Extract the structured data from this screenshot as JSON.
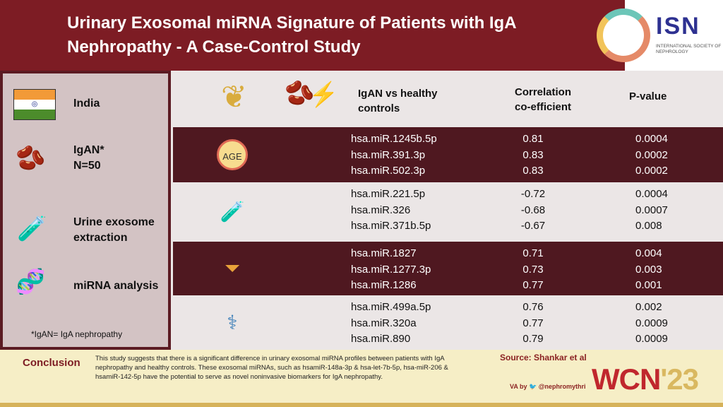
{
  "header": {
    "title": "Urinary Exosomal miRNA Signature of Patients with IgA Nephropathy - A Case-Control Study",
    "logo": {
      "name": "ISN",
      "subtitle": "INTERNATIONAL SOCIETY OF NEPHROLOGY"
    }
  },
  "left": {
    "country": "India",
    "cohort_line1": "IgAN*",
    "cohort_line2": "N=50",
    "step1_line1": "Urine exosome",
    "step1_line2": "extraction",
    "step2": "miRNA analysis",
    "footnote": "*IgAN= IgA nephropathy"
  },
  "table": {
    "col1_line1": "IgAN vs healthy",
    "col1_line2": "controls",
    "col2_line1": "Correlation",
    "col2_line2": "co-efficient",
    "col3": "P-value",
    "groups": [
      {
        "icon": "age-icon",
        "rows": [
          [
            "hsa.miR.1245b.5p",
            "0.81",
            "0.0004"
          ],
          [
            "hsa.miR.391.3p",
            "0.83",
            "0.0002"
          ],
          [
            "hsa.miR.502.3p",
            "0.83",
            "0.0002"
          ]
        ]
      },
      {
        "icon": "urine-test-icon",
        "rows": [
          [
            "hsa.miR.221.5p",
            "-0.72",
            "0.0004"
          ],
          [
            "hsa.miR.326",
            "-0.68",
            "0.0007"
          ],
          [
            "hsa.miR.371b.5p",
            "-0.67",
            "0.008"
          ]
        ]
      },
      {
        "icon": "filter-icon",
        "rows": [
          [
            "hsa.miR.1827",
            "0.71",
            "0.004"
          ],
          [
            "hsa.miR.1277.3p",
            "0.73",
            "0.003"
          ],
          [
            "hsa.miR.1286",
            "0.77",
            "0.001"
          ]
        ]
      },
      {
        "icon": "dialysis-icon",
        "rows": [
          [
            "hsa.miR.499a.5p",
            "0.76",
            "0.002"
          ],
          [
            "hsa.miR.320a",
            "0.77",
            "0.0009"
          ],
          [
            "hsa.miR.890",
            "0.79",
            "0.0009"
          ]
        ]
      }
    ]
  },
  "footer": {
    "conclusion_label": "Conclusion",
    "conclusion_text": "This study suggests that there is a significant difference in urinary exosomal miRNA profiles between patients with IgA nephropathy and healthy controls. These exosomal miRNAs, such as hsamiR-148a-3p & hsa-let-7b-5p, hsa-miR-206 & hsamiR-142-5p have the potential to serve as novel noninvasive biomarkers for IgA nephropathy.",
    "source": "Source: Shankar et al",
    "va_by": "VA by",
    "handle": "@nephromythri",
    "wcn": "WCN",
    "wcn_year": "'23"
  },
  "colors": {
    "header": "#7d1c24",
    "dark_row": "#4f1820",
    "light_row": "#ebe6e6",
    "footer": "#f6eec6"
  }
}
